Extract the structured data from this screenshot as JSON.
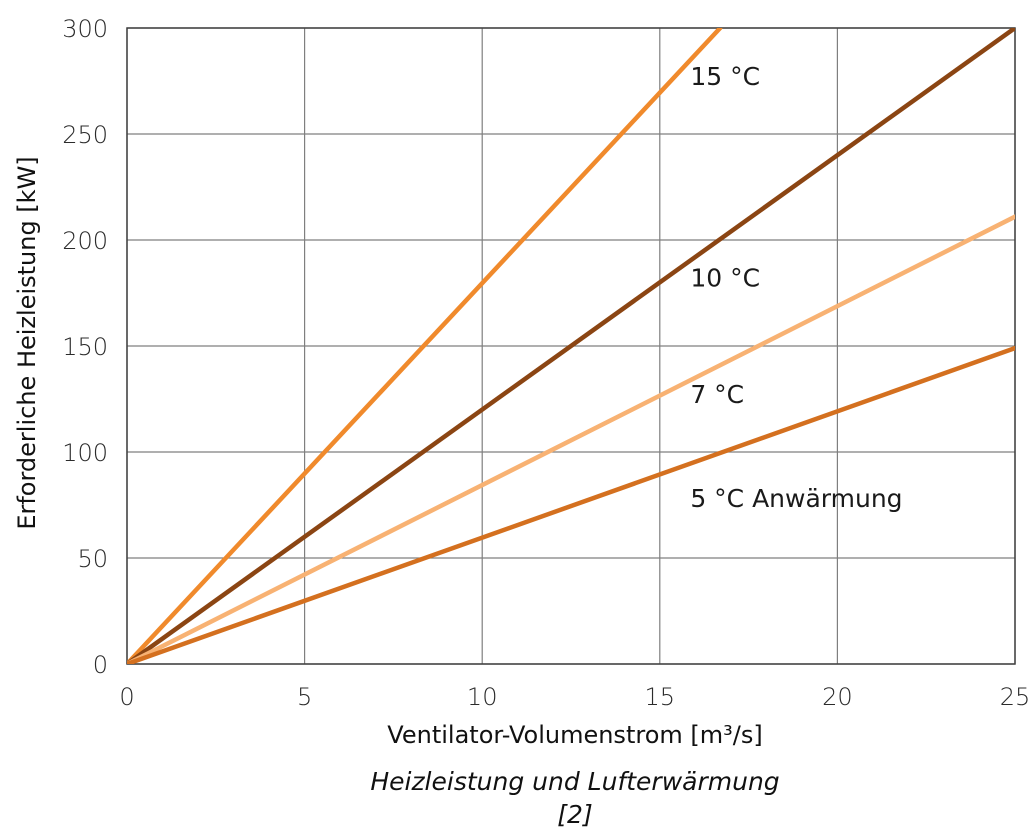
{
  "caption": {
    "line1": "Heizleistung und Lufterwärmung",
    "line2": "[2]"
  },
  "colors": {
    "grid": "#7f7f7f",
    "axis": "#404040"
  },
  "chart_data": {
    "type": "line",
    "title": "",
    "xlabel": "Ventilator-Volumenstrom [m³/s]",
    "ylabel": "Erforderliche Heizleistung [kW]",
    "xlim": [
      0,
      25
    ],
    "ylim": [
      0,
      300
    ],
    "xticks": [
      0,
      5,
      10,
      15,
      20,
      25
    ],
    "yticks": [
      0,
      50,
      100,
      150,
      200,
      250,
      300
    ],
    "grid": true,
    "series": [
      {
        "name": "15 °C",
        "color": "#f08a2c",
        "x": [
          0,
          16.7
        ],
        "y": [
          0,
          300
        ]
      },
      {
        "name": "10 °C",
        "color": "#8b4513",
        "x": [
          0,
          25
        ],
        "y": [
          0,
          300
        ]
      },
      {
        "name": "7 °C",
        "color": "#f8b273",
        "x": [
          0,
          25
        ],
        "y": [
          0,
          211
        ]
      },
      {
        "name": "5 °C Anwärmung",
        "color": "#d4701f",
        "x": [
          0,
          25
        ],
        "y": [
          0,
          149
        ]
      }
    ],
    "annotations": [
      {
        "text": "15 °C",
        "x": 16,
        "y": 273
      },
      {
        "text": "10 °C",
        "x": 16,
        "y": 178
      },
      {
        "text": "7 °C",
        "x": 16,
        "y": 123
      },
      {
        "text": "5 °C Anwärmung",
        "x": 16,
        "y": 74
      }
    ]
  }
}
